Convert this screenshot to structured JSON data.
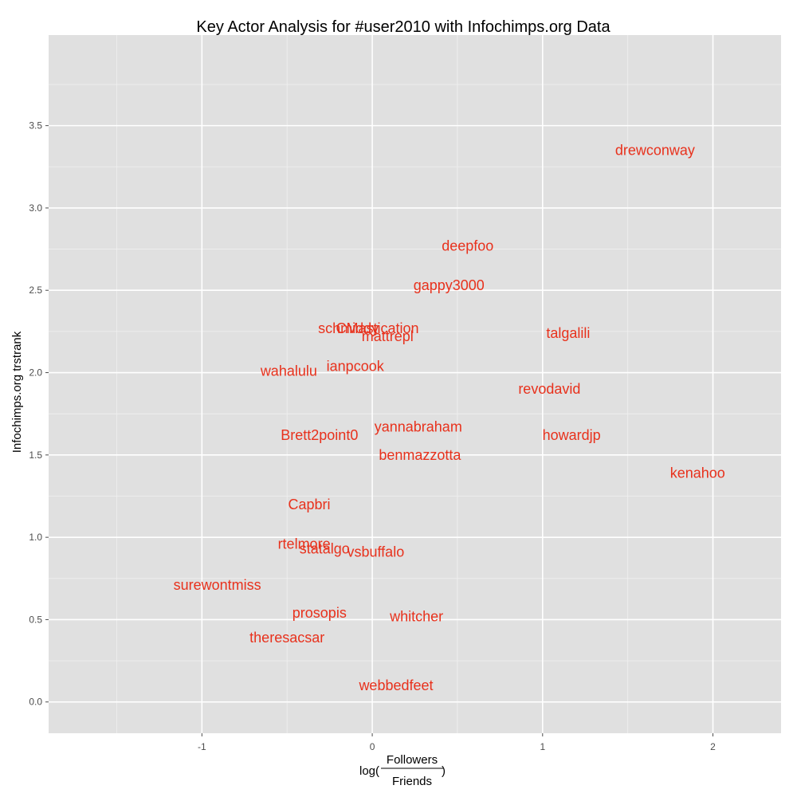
{
  "chart_data": {
    "type": "scatter",
    "title": "Key Actor Analysis for #user2010 with Infochimps.org Data",
    "xlabel": {
      "prefix": "log(",
      "numerator": "Followers",
      "denominator": "Friends",
      "suffix": ")"
    },
    "ylabel": "Infochimps.org trstrank",
    "xlim": [
      -1.9,
      2.4
    ],
    "ylim": [
      -0.19,
      4.05
    ],
    "x_ticks": [
      -1,
      0,
      1,
      2
    ],
    "x_tick_labels": [
      "-1",
      "0",
      "1",
      "2"
    ],
    "y_ticks": [
      0.0,
      0.5,
      1.0,
      1.5,
      2.0,
      2.5,
      3.0,
      3.5
    ],
    "y_tick_labels": [
      "0.0",
      "0.5",
      "1.0",
      "1.5",
      "2.0",
      "2.5",
      "3.0",
      "3.5"
    ],
    "grid": true,
    "background": "#e0e0e0",
    "grid_color": "#ffffff",
    "label_color": "#e8311c",
    "points": [
      {
        "label": "drewconway",
        "x": 1.66,
        "y": 3.35
      },
      {
        "label": "deepfoo",
        "x": 0.56,
        "y": 2.77
      },
      {
        "label": "gappy3000",
        "x": 0.45,
        "y": 2.53
      },
      {
        "label": "schmiddy",
        "x": -0.14,
        "y": 2.27
      },
      {
        "label": "CMastication",
        "x": 0.03,
        "y": 2.27
      },
      {
        "label": "mattrepl",
        "x": 0.09,
        "y": 2.22
      },
      {
        "label": "talgalili",
        "x": 1.15,
        "y": 2.24
      },
      {
        "label": "wahalulu",
        "x": -0.49,
        "y": 2.01
      },
      {
        "label": "ianpcook",
        "x": -0.1,
        "y": 2.04
      },
      {
        "label": "revodavid",
        "x": 1.04,
        "y": 1.9
      },
      {
        "label": "yannabraham",
        "x": 0.27,
        "y": 1.67
      },
      {
        "label": "Brett2point0",
        "x": -0.31,
        "y": 1.62
      },
      {
        "label": "howardjp",
        "x": 1.17,
        "y": 1.62
      },
      {
        "label": "benmazzotta",
        "x": 0.28,
        "y": 1.5
      },
      {
        "label": "kenahoo",
        "x": 1.91,
        "y": 1.39
      },
      {
        "label": "Capbri",
        "x": -0.37,
        "y": 1.2
      },
      {
        "label": "rtelmore",
        "x": -0.4,
        "y": 0.96
      },
      {
        "label": "statalgo",
        "x": -0.28,
        "y": 0.93
      },
      {
        "label": "vsbuffalo",
        "x": 0.02,
        "y": 0.91
      },
      {
        "label": "surewontmiss",
        "x": -0.91,
        "y": 0.71
      },
      {
        "label": "prosopis",
        "x": -0.31,
        "y": 0.54
      },
      {
        "label": "whitcher",
        "x": 0.26,
        "y": 0.52
      },
      {
        "label": "theresacsar",
        "x": -0.5,
        "y": 0.39
      },
      {
        "label": "webbedfeet",
        "x": 0.14,
        "y": 0.1
      }
    ]
  }
}
